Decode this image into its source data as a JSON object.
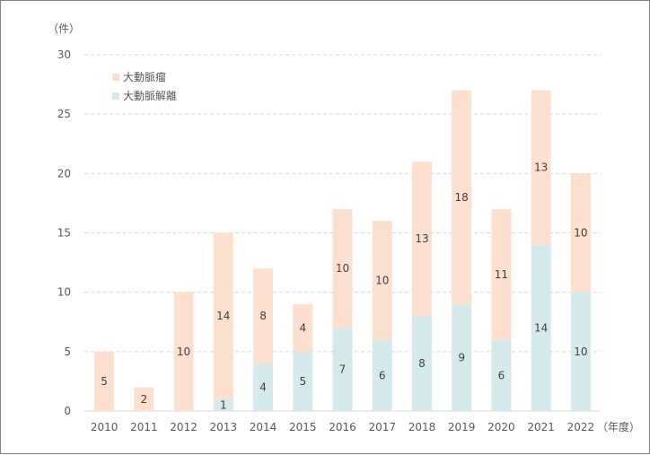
{
  "chart_data": {
    "type": "bar",
    "stacked": true,
    "categories": [
      "2010",
      "2011",
      "2012",
      "2013",
      "2014",
      "2015",
      "2016",
      "2017",
      "2018",
      "2019",
      "2020",
      "2021",
      "2022"
    ],
    "series": [
      {
        "name": "大動脈解離",
        "color": "#d6eaeb",
        "values": [
          0,
          0,
          0,
          1,
          4,
          5,
          7,
          6,
          8,
          9,
          6,
          14,
          10
        ]
      },
      {
        "name": "大動脈瘤",
        "color": "#fde0d0",
        "values": [
          5,
          2,
          10,
          14,
          8,
          4,
          10,
          10,
          13,
          18,
          11,
          13,
          10
        ]
      }
    ],
    "legend_order": [
      "大動脈瘤",
      "大動脈解離"
    ],
    "legend_placement": "top-left",
    "y_unit": "（件）",
    "x_unit": "（年度）",
    "ylim": [
      0,
      30
    ],
    "yticks": [
      0,
      5,
      10,
      15,
      20,
      25,
      30
    ],
    "grid": "horizontal dashed",
    "grid_color": "#d9d9d9"
  }
}
